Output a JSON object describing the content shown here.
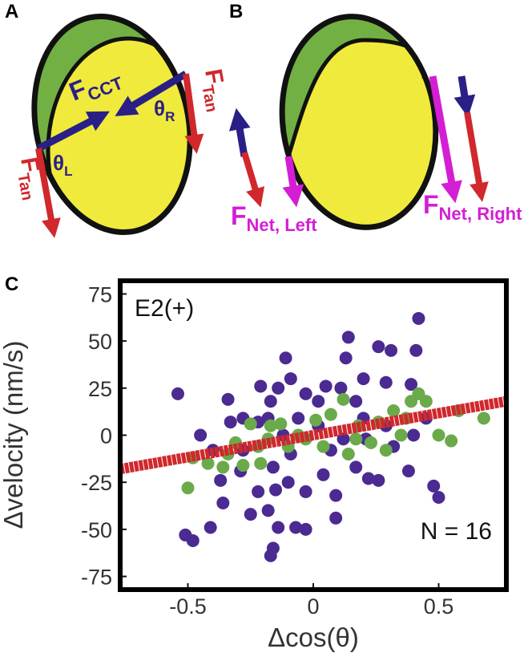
{
  "panel_a": {
    "label": "A",
    "f_cct": {
      "main": "F",
      "sub": "CCT"
    },
    "theta_r": {
      "main": "θ",
      "sub": "R"
    },
    "theta_l": {
      "main": "θ",
      "sub": "L"
    },
    "f_tan_right": {
      "main": "F",
      "sub": "Tan"
    },
    "f_tan_left": {
      "main": "F",
      "sub": "Tan"
    }
  },
  "panel_b": {
    "label": "B",
    "f_net_left": {
      "main": "F",
      "sub": "Net, Left"
    },
    "f_net_right": {
      "main": "F",
      "sub": "Net, Right"
    }
  },
  "chart_data": {
    "type": "scatter",
    "panel_label": "C",
    "xlabel": "Δcos(θ)",
    "ylabel": "Δvelocity (nm/s)",
    "annotations": [
      "E2(+)",
      "N = 16"
    ],
    "xlim": [
      -0.77,
      0.77
    ],
    "ylim": [
      -82,
      82
    ],
    "xticks": [
      -0.5,
      0,
      0.5
    ],
    "yticks": [
      -75,
      -50,
      -25,
      0,
      25,
      50,
      75
    ],
    "series": [
      {
        "color": "#4b2a91",
        "x": [
          -0.54,
          -0.51,
          -0.48,
          -0.41,
          -0.11,
          0.13,
          0.14,
          0.26,
          0.31,
          0.42,
          0.41,
          -0.45,
          -0.34,
          -0.28,
          -0.21,
          -0.17,
          -0.14,
          -0.03,
          0.05,
          0.11,
          0.2,
          0.29,
          0.39,
          -0.37,
          -0.29,
          -0.22,
          -0.16,
          -0.1,
          -0.03,
          0.04,
          0.09,
          0.17,
          0.26,
          0.38,
          0.48,
          0.5,
          -0.36,
          -0.25,
          -0.18,
          -0.14,
          -0.15,
          -0.17,
          -0.16,
          -0.07,
          -0.03,
          0.09,
          0.22,
          -0.33,
          -0.12,
          -0.06,
          0.02,
          0.12,
          0.21,
          0.32,
          0.4,
          -0.09,
          -0.28,
          -0.4,
          -0.18,
          0.07,
          0.29,
          0.45,
          0.02,
          0.17,
          -0.09,
          -0.22,
          0.2
        ],
        "values": [
          22,
          -53,
          -56,
          -49,
          41,
          41,
          52,
          47,
          45,
          62,
          45,
          0,
          19,
          9,
          26,
          18,
          25,
          22,
          26,
          25,
          30,
          28,
          27,
          -24,
          -19,
          -30,
          -17,
          -25,
          -30,
          -21,
          -32,
          -17,
          -24,
          -19,
          -27,
          -33,
          -36,
          -42,
          -40,
          -49,
          -29,
          -64,
          -60,
          -49,
          -50,
          -44,
          -23,
          7,
          0,
          9,
          5,
          -2,
          -2,
          -6,
          0,
          -10,
          -8,
          -8,
          9,
          -8,
          5,
          9,
          18,
          18,
          30,
          7,
          9
        ]
      },
      {
        "color": "#6aaa4b",
        "x": [
          -0.5,
          -0.48,
          -0.42,
          -0.34,
          -0.28,
          -0.22,
          -0.18,
          -0.13,
          -0.06,
          0.01,
          0.07,
          0.12,
          0.18,
          0.26,
          0.32,
          0.37,
          0.42,
          0.45,
          0.5,
          0.55,
          0.68,
          0.58,
          -0.25,
          -0.31,
          -0.1,
          -0.03,
          0.04,
          0.14,
          0.23,
          0.29,
          0.39,
          0.35,
          0.17,
          -0.36,
          -0.21,
          -0.17
        ],
        "values": [
          -28,
          -12,
          -15,
          -10,
          -16,
          -6,
          -2,
          6,
          0,
          8,
          11,
          19,
          5,
          7,
          13,
          9,
          22,
          18,
          0,
          -3,
          9,
          13,
          6,
          -4,
          -6,
          -2,
          -6,
          -10,
          -4,
          -8,
          18,
          0,
          -2,
          -17,
          -15,
          5
        ]
      },
      {
        "type": "line",
        "color": "#d0282c",
        "x": [
          -0.77,
          0.77
        ],
        "values": [
          -18,
          18
        ]
      }
    ]
  }
}
